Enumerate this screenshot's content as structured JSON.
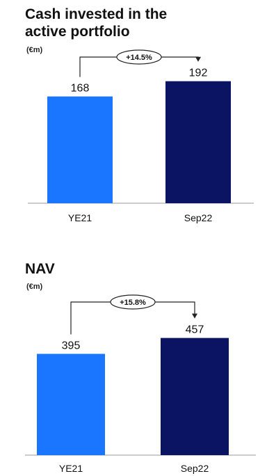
{
  "chart_data": [
    {
      "type": "bar",
      "title": "Cash invested in the active portfolio",
      "unit": "(€m)",
      "categories": [
        "YE21",
        "Sep22"
      ],
      "values": [
        168,
        192
      ],
      "value_labels": [
        "168",
        "192"
      ],
      "growth_label": "+14.5%",
      "colors": [
        "#1a75ff",
        "#0a1463"
      ],
      "ylim": [
        0,
        230
      ],
      "grid": false,
      "legend": "none"
    },
    {
      "type": "bar",
      "title": "NAV",
      "unit": "(€m)",
      "categories": [
        "YE21",
        "Sep22"
      ],
      "values": [
        395,
        457
      ],
      "value_labels": [
        "395",
        "457"
      ],
      "growth_label": "+15.8%",
      "colors": [
        "#1a75ff",
        "#0a1463"
      ],
      "ylim": [
        0,
        570
      ],
      "grid": false,
      "legend": "none"
    }
  ]
}
